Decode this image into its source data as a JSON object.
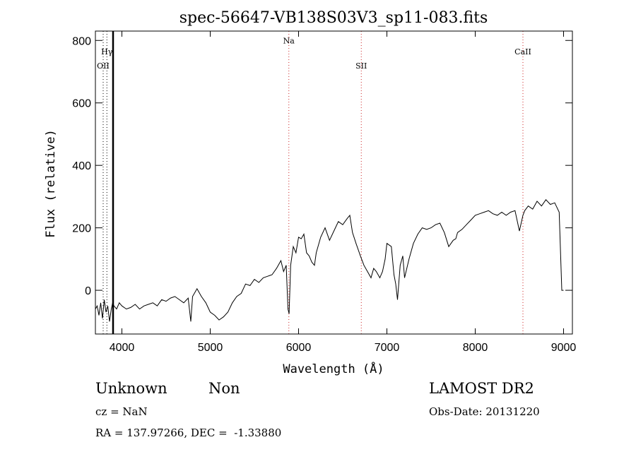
{
  "chart_data": {
    "type": "line",
    "title": "spec-56647-VB138S03V3_sp11-083.fits",
    "xlabel": "Wavelength (Å)",
    "ylabel": "Flux (relative)",
    "xlim": [
      3700,
      9100
    ],
    "ylim": [
      -140,
      830
    ],
    "x_ticks": [
      4000,
      5000,
      6000,
      7000,
      8000,
      9000
    ],
    "y_ticks": [
      0,
      200,
      400,
      600,
      800
    ],
    "grid": false,
    "series": [
      {
        "x": [
          3700,
          3720,
          3740,
          3760,
          3780,
          3800,
          3820,
          3840,
          3860,
          3880,
          3895,
          3910,
          3940,
          3970,
          4000,
          4050,
          4100,
          4150,
          4200,
          4250,
          4300,
          4350,
          4400,
          4450,
          4500,
          4550,
          4600,
          4650,
          4700,
          4750,
          4780,
          4800,
          4850,
          4900,
          4950,
          5000,
          5050,
          5100,
          5150,
          5200,
          5250,
          5300,
          5350,
          5400,
          5450,
          5500,
          5550,
          5600,
          5650,
          5700,
          5750,
          5800,
          5830,
          5860,
          5880,
          5893,
          5910,
          5940,
          5970,
          6000,
          6030,
          6060,
          6090,
          6120,
          6150,
          6180,
          6200,
          6250,
          6300,
          6350,
          6400,
          6450,
          6500,
          6550,
          6580,
          6610,
          6650,
          6700,
          6740,
          6780,
          6820,
          6850,
          6880,
          6920,
          6950,
          6980,
          7000,
          7050,
          7080,
          7100,
          7120,
          7150,
          7180,
          7200,
          7250,
          7300,
          7350,
          7400,
          7450,
          7500,
          7550,
          7600,
          7650,
          7700,
          7750,
          7780,
          7800,
          7850,
          7900,
          7950,
          8000,
          8050,
          8100,
          8150,
          8200,
          8250,
          8300,
          8350,
          8400,
          8450,
          8500,
          8540,
          8560,
          8600,
          8650,
          8700,
          8750,
          8800,
          8850,
          8900,
          8950,
          8980,
          9000
        ],
        "values": [
          -60,
          -50,
          -80,
          -40,
          -90,
          -30,
          -70,
          -50,
          -100,
          -60,
          -40,
          -50,
          -60,
          -40,
          -50,
          -60,
          -55,
          -45,
          -60,
          -50,
          -45,
          -40,
          -50,
          -30,
          -35,
          -25,
          -20,
          -30,
          -40,
          -25,
          -100,
          -20,
          5,
          -20,
          -40,
          -70,
          -80,
          -95,
          -85,
          -70,
          -40,
          -20,
          -10,
          20,
          15,
          35,
          25,
          40,
          45,
          50,
          70,
          95,
          60,
          80,
          -60,
          -75,
          80,
          140,
          120,
          170,
          165,
          180,
          120,
          110,
          90,
          80,
          120,
          170,
          200,
          160,
          190,
          220,
          210,
          230,
          240,
          185,
          150,
          110,
          80,
          60,
          40,
          70,
          60,
          40,
          60,
          100,
          150,
          140,
          50,
          20,
          -30,
          80,
          110,
          40,
          100,
          150,
          180,
          200,
          195,
          200,
          210,
          215,
          185,
          140,
          160,
          165,
          185,
          195,
          210,
          225,
          240,
          245,
          250,
          255,
          245,
          240,
          250,
          240,
          250,
          255,
          190,
          240,
          255,
          270,
          260,
          285,
          270,
          290,
          275,
          280,
          250,
          0,
          0
        ]
      }
    ],
    "annotations": [
      {
        "label": "Hγ",
        "x": 3830,
        "y_label": 755
      },
      {
        "label": "OII",
        "x": 3788,
        "y_label": 710
      },
      {
        "label": "Na",
        "x": 5890,
        "y_label": 790
      },
      {
        "label": "SII",
        "x": 6710,
        "y_label": 710
      },
      {
        "label": "CaII",
        "x": 8540,
        "y_label": 755
      }
    ],
    "line_marks": [
      {
        "label": "Hγ",
        "x": 3830,
        "style": "dotted",
        "color": "#000000"
      },
      {
        "label": "OII",
        "x": 3788,
        "style": "dotted",
        "color": "#000000"
      },
      {
        "label": "Na",
        "x": 5890,
        "style": "dotted",
        "color": "#cc2222"
      },
      {
        "label": "SII",
        "x": 6710,
        "style": "dotted",
        "color": "#cc2222"
      },
      {
        "label": "CaII",
        "x": 8540,
        "style": "dotted",
        "color": "#cc2222"
      },
      {
        "label": "",
        "x": 3900,
        "style": "solid",
        "color": "#000000"
      }
    ]
  },
  "footer": {
    "class_a": "Unknown",
    "class_b": "Non",
    "survey": "LAMOST DR2",
    "cz": "cz = NaN",
    "obs_date": "Obs-Date: 20131220",
    "radec": "RA = 137.97266, DEC =  -1.33880"
  }
}
